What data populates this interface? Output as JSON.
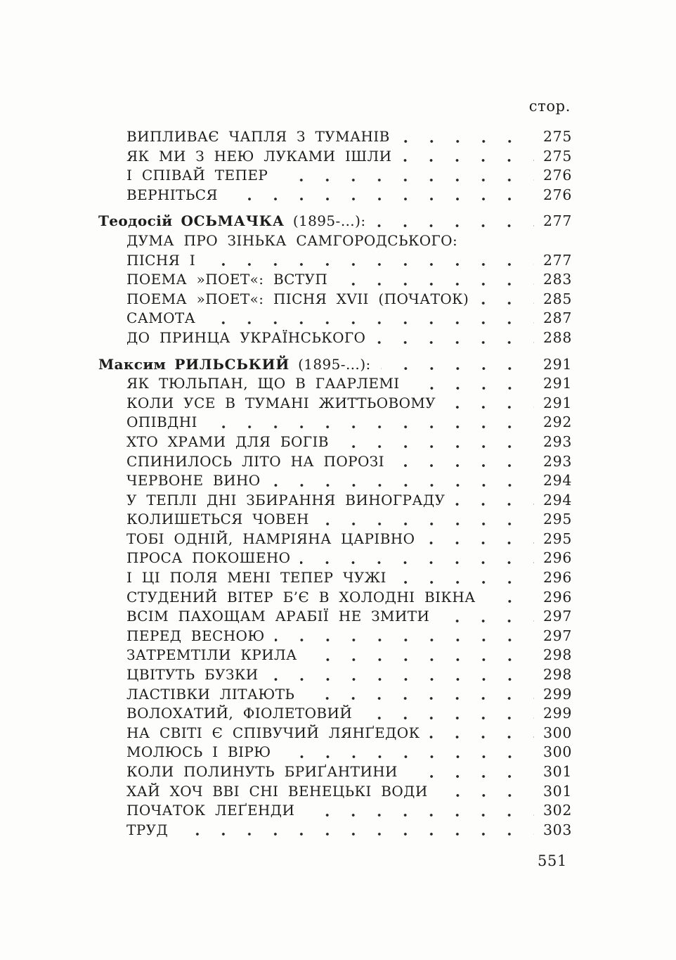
{
  "page": {
    "column_header": "стор.",
    "folio": "551"
  },
  "colors": {
    "ink": "#1d1d1d",
    "paper": "#fdfdfc"
  },
  "toc": {
    "sections": [
      {
        "author": null,
        "entries": [
          {
            "title": "ВИПЛИВАЄ ЧАПЛЯ З ТУМАНІВ",
            "page": "275"
          },
          {
            "title": "ЯК МИ З НЕЮ ЛУКАМИ ІШЛИ",
            "page": "275"
          },
          {
            "title": "І СПІВАЙ ТЕПЕР",
            "page": "276"
          },
          {
            "title": "ВЕРНІТЬСЯ",
            "page": "276"
          }
        ]
      },
      {
        "author": {
          "first": "Теодосій",
          "last": "ОСЬМАЧКА",
          "years": "(1895-…):",
          "page": "277"
        },
        "entries": [
          {
            "title": "ДУМА ПРО ЗІНЬКА САМГОРОДСЬКОГО:",
            "page": null
          },
          {
            "title": "ПІСНЯ І",
            "page": "277"
          },
          {
            "title": "ПОЕМА »ПОЕТ«: ВСТУП",
            "page": "283"
          },
          {
            "title": "ПОЕМА »ПОЕТ«: ПІСНЯ XVII (ПОЧАТОК)",
            "page": "285"
          },
          {
            "title": "САМОТА",
            "page": "287"
          },
          {
            "title": "ДО ПРИНЦА УКРАЇНСЬКОГО",
            "page": "288"
          }
        ]
      },
      {
        "author": {
          "first": "Максим",
          "last": "РИЛЬСЬКИЙ",
          "years": "(1895-…):",
          "page": "291"
        },
        "entries": [
          {
            "title": "ЯК ТЮЛЬПАН, ЩО В ГААРЛЕМІ",
            "page": "291"
          },
          {
            "title": "КОЛИ УСЕ В ТУМАНІ ЖИТТЬОВОМУ",
            "page": "291"
          },
          {
            "title": "ОПІВДНІ",
            "page": "292"
          },
          {
            "title": "ХТО ХРАМИ ДЛЯ БОГІВ",
            "page": "293"
          },
          {
            "title": "СПИНИЛОСЬ ЛІТО НА ПОРОЗІ",
            "page": "293"
          },
          {
            "title": "ЧЕРВОНЕ ВИНО",
            "page": "294"
          },
          {
            "title": "У ТЕПЛІ ДНІ ЗБИРАННЯ ВИНОГРАДУ",
            "page": "294"
          },
          {
            "title": "КОЛИШЕТЬСЯ ЧОВЕН",
            "page": "295"
          },
          {
            "title": "ТОБІ ОДНІЙ, НАМРІЯНА ЦАРІВНО",
            "page": "295"
          },
          {
            "title": "ПРОСА ПОКОШЕНО",
            "page": "296"
          },
          {
            "title": "І ЦІ ПОЛЯ МЕНІ ТЕПЕР ЧУЖІ",
            "page": "296"
          },
          {
            "title": "СТУДЕНИЙ ВІТЕР Б’Є В ХОЛОДНІ ВІКНА",
            "page": "296"
          },
          {
            "title": "ВСІМ ПАХОЩАМ АРАБІЇ НЕ ЗМИТИ",
            "page": "297"
          },
          {
            "title": "ПЕРЕД ВЕСНОЮ",
            "page": "297"
          },
          {
            "title": "ЗАТРЕМТІЛИ КРИЛА",
            "page": "298"
          },
          {
            "title": "ЦВІТУТЬ БУЗКИ",
            "page": "298"
          },
          {
            "title": "ЛАСТІВКИ ЛІТАЮТЬ",
            "page": "299"
          },
          {
            "title": "ВОЛОХАТИЙ, ФІОЛЕТОВИЙ",
            "page": "299"
          },
          {
            "title": "НА СВІТІ Є СПІВУЧИЙ ЛЯНҐЕДОК",
            "page": "300"
          },
          {
            "title": "МОЛЮСЬ І ВІРЮ",
            "page": "300"
          },
          {
            "title": "КОЛИ ПОЛИНУТЬ БРИҐАНТИНИ",
            "page": "301"
          },
          {
            "title": "ХАЙ ХОЧ ВВІ СНІ ВЕНЕЦЬКІ ВОДИ",
            "page": "301"
          },
          {
            "title": "ПОЧАТОК ЛЕҐЕНДИ",
            "page": "302"
          },
          {
            "title": "ТРУД",
            "page": "303"
          }
        ]
      }
    ]
  }
}
